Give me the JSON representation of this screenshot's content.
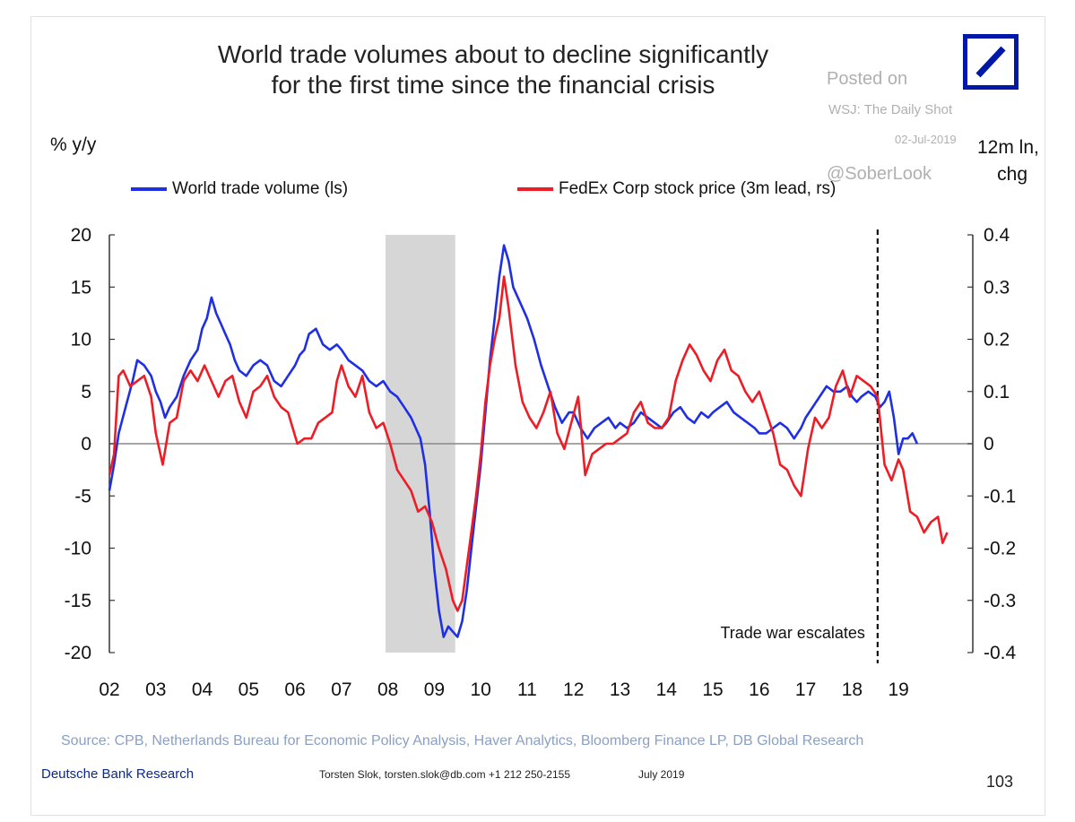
{
  "colors": {
    "series_blue": "#1f2fe6",
    "series_red": "#ee1c24",
    "recession": "#d6d6d6",
    "axis": "#333333",
    "logo": "#0018a8",
    "source_text": "#8aa0c4"
  },
  "header": {
    "title_line1": "World trade volumes about to decline significantly",
    "title_line2": "for the first time since the financial crisis"
  },
  "watermark": {
    "posted": "Posted on",
    "source": "WSJ: The Daily Shot",
    "date": "02-Jul-2019",
    "handle": "@SoberLook"
  },
  "footer": {
    "source": "Source: CPB, Netherlands Bureau for Economic Policy Analysis, Haver Analytics, Bloomberg Finance LP, DB Global Research",
    "org": "Deutsche Bank Research",
    "contact": "Torsten Slok, torsten.slok@db.com  +1 212 250-2155",
    "date": "July 2019",
    "page": "103"
  },
  "chart_data": {
    "type": "line",
    "title": "World trade volumes about to decline significantly for the first time since the financial crisis",
    "ylabel": "% y/y",
    "y2label_line1": "12m ln,",
    "y2label_line2": "chg",
    "xlim": [
      2002,
      2020.6
    ],
    "ylim": [
      -20,
      20
    ],
    "y2lim": [
      -0.4,
      0.4
    ],
    "x_ticks": [
      2002,
      2003,
      2004,
      2005,
      2006,
      2007,
      2008,
      2009,
      2010,
      2011,
      2012,
      2013,
      2014,
      2015,
      2016,
      2017,
      2018,
      2019
    ],
    "x_tick_labels": [
      "02",
      "03",
      "04",
      "05",
      "06",
      "07",
      "08",
      "09",
      "10",
      "11",
      "12",
      "13",
      "14",
      "15",
      "16",
      "17",
      "18",
      "19"
    ],
    "y_ticks": [
      20,
      15,
      10,
      5,
      0,
      -5,
      -10,
      -15,
      -20
    ],
    "y_tick_labels": [
      "20",
      "15",
      "10",
      "5",
      "0",
      "-5",
      "-10",
      "-15",
      "-20"
    ],
    "y2_ticks": [
      0.4,
      0.3,
      0.2,
      0.1,
      0,
      -0.1,
      -0.2,
      -0.3,
      -0.4
    ],
    "y2_tick_labels": [
      "0.4",
      "0.3",
      "0.2",
      "0.1",
      "0",
      "-0.1",
      "-0.2",
      "-0.3",
      "-0.4"
    ],
    "recession_band": [
      2007.95,
      2009.45
    ],
    "event_line": {
      "x": 2018.55,
      "label": "Trade war escalates"
    },
    "series": [
      {
        "name": "World trade volume (ls)",
        "axis": "left",
        "color": "#1f2fe6",
        "x": [
          2002.0,
          2002.1,
          2002.2,
          2002.35,
          2002.5,
          2002.6,
          2002.75,
          2002.9,
          2003.0,
          2003.1,
          2003.2,
          2003.3,
          2003.45,
          2003.6,
          2003.75,
          2003.9,
          2004.0,
          2004.1,
          2004.2,
          2004.3,
          2004.4,
          2004.5,
          2004.6,
          2004.7,
          2004.8,
          2004.95,
          2005.1,
          2005.25,
          2005.4,
          2005.55,
          2005.7,
          2005.85,
          2006.0,
          2006.1,
          2006.2,
          2006.3,
          2006.45,
          2006.6,
          2006.75,
          2006.9,
          2007.0,
          2007.15,
          2007.3,
          2007.45,
          2007.6,
          2007.75,
          2007.9,
          2008.05,
          2008.2,
          2008.35,
          2008.5,
          2008.6,
          2008.7,
          2008.8,
          2008.9,
          2009.0,
          2009.1,
          2009.2,
          2009.3,
          2009.4,
          2009.5,
          2009.6,
          2009.7,
          2009.8,
          2009.9,
          2010.0,
          2010.1,
          2010.2,
          2010.3,
          2010.4,
          2010.5,
          2010.6,
          2010.7,
          2010.85,
          2011.0,
          2011.15,
          2011.3,
          2011.45,
          2011.6,
          2011.75,
          2011.9,
          2012.0,
          2012.15,
          2012.3,
          2012.45,
          2012.6,
          2012.75,
          2012.9,
          2013.0,
          2013.15,
          2013.3,
          2013.45,
          2013.6,
          2013.75,
          2013.9,
          2014.0,
          2014.15,
          2014.3,
          2014.45,
          2014.6,
          2014.75,
          2014.9,
          2015.0,
          2015.15,
          2015.3,
          2015.45,
          2015.6,
          2015.75,
          2015.9,
          2016.0,
          2016.15,
          2016.3,
          2016.45,
          2016.6,
          2016.75,
          2016.9,
          2017.0,
          2017.15,
          2017.3,
          2017.45,
          2017.6,
          2017.75,
          2017.9,
          2018.0,
          2018.1,
          2018.2,
          2018.35,
          2018.5,
          2018.6,
          2018.7,
          2018.8,
          2018.9,
          2019.0,
          2019.1,
          2019.2,
          2019.3,
          2019.4
        ],
        "values": [
          -4.5,
          -2.0,
          1.0,
          3.5,
          6.0,
          8.0,
          7.5,
          6.5,
          5.0,
          4.0,
          2.5,
          3.5,
          4.5,
          6.5,
          8.0,
          9.0,
          11.0,
          12.0,
          14.0,
          12.5,
          11.5,
          10.5,
          9.5,
          8.0,
          7.0,
          6.5,
          7.5,
          8.0,
          7.5,
          6.0,
          5.5,
          6.5,
          7.5,
          8.5,
          9.0,
          10.5,
          11.0,
          9.5,
          9.0,
          9.5,
          9.0,
          8.0,
          7.5,
          7.0,
          6.0,
          5.5,
          6.0,
          5.0,
          4.5,
          3.5,
          2.5,
          1.5,
          0.5,
          -2.0,
          -6.5,
          -12.0,
          -16.0,
          -18.5,
          -17.5,
          -18.0,
          -18.5,
          -17.0,
          -14.0,
          -10.0,
          -6.0,
          -2.0,
          3.0,
          8.0,
          12.0,
          16.0,
          19.0,
          17.5,
          15.0,
          13.5,
          12.0,
          10.0,
          7.5,
          5.5,
          3.5,
          2.0,
          3.0,
          3.0,
          1.5,
          0.5,
          1.5,
          2.0,
          2.5,
          1.5,
          2.0,
          1.5,
          2.0,
          3.0,
          2.5,
          2.0,
          1.5,
          2.0,
          3.0,
          3.5,
          2.5,
          2.0,
          3.0,
          2.5,
          3.0,
          3.5,
          4.0,
          3.0,
          2.5,
          2.0,
          1.5,
          1.0,
          1.0,
          1.5,
          2.0,
          1.5,
          0.5,
          1.5,
          2.5,
          3.5,
          4.5,
          5.5,
          5.0,
          5.0,
          5.5,
          4.5,
          4.0,
          4.5,
          5.0,
          4.5,
          3.5,
          4.0,
          5.0,
          2.5,
          -1.0,
          0.5,
          0.5,
          1.0,
          0.0
        ]
      },
      {
        "name": "FedEx Corp stock price (3m lead, rs)",
        "axis": "right",
        "color": "#ee1c24",
        "x": [
          2002.0,
          2002.1,
          2002.2,
          2002.3,
          2002.45,
          2002.6,
          2002.75,
          2002.9,
          2003.0,
          2003.15,
          2003.3,
          2003.45,
          2003.6,
          2003.75,
          2003.9,
          2004.05,
          2004.2,
          2004.35,
          2004.5,
          2004.65,
          2004.8,
          2004.95,
          2005.1,
          2005.25,
          2005.4,
          2005.55,
          2005.7,
          2005.85,
          2005.95,
          2006.05,
          2006.2,
          2006.35,
          2006.5,
          2006.65,
          2006.8,
          2006.9,
          2007.0,
          2007.15,
          2007.3,
          2007.45,
          2007.6,
          2007.75,
          2007.9,
          2008.05,
          2008.2,
          2008.35,
          2008.5,
          2008.65,
          2008.8,
          2008.95,
          2009.1,
          2009.25,
          2009.4,
          2009.5,
          2009.6,
          2009.75,
          2009.9,
          2010.0,
          2010.1,
          2010.2,
          2010.3,
          2010.4,
          2010.5,
          2010.6,
          2010.75,
          2010.9,
          2011.05,
          2011.2,
          2011.35,
          2011.5,
          2011.65,
          2011.8,
          2011.95,
          2012.1,
          2012.25,
          2012.4,
          2012.55,
          2012.7,
          2012.85,
          2013.0,
          2013.15,
          2013.3,
          2013.45,
          2013.6,
          2013.75,
          2013.9,
          2014.05,
          2014.2,
          2014.35,
          2014.5,
          2014.65,
          2014.8,
          2014.95,
          2015.1,
          2015.25,
          2015.4,
          2015.55,
          2015.7,
          2015.85,
          2016.0,
          2016.15,
          2016.3,
          2016.45,
          2016.6,
          2016.75,
          2016.9,
          2017.05,
          2017.2,
          2017.35,
          2017.5,
          2017.65,
          2017.8,
          2017.95,
          2018.1,
          2018.25,
          2018.4,
          2018.55,
          2018.7,
          2018.85,
          2019.0,
          2019.1,
          2019.25,
          2019.4,
          2019.55,
          2019.7,
          2019.85,
          2019.95,
          2020.05
        ],
        "values": [
          -0.06,
          -0.02,
          0.13,
          0.14,
          0.11,
          0.12,
          0.13,
          0.09,
          0.02,
          -0.04,
          0.04,
          0.05,
          0.12,
          0.14,
          0.12,
          0.15,
          0.12,
          0.09,
          0.12,
          0.13,
          0.08,
          0.05,
          0.1,
          0.11,
          0.13,
          0.09,
          0.07,
          0.06,
          0.03,
          0.0,
          0.01,
          0.01,
          0.04,
          0.05,
          0.06,
          0.12,
          0.15,
          0.11,
          0.09,
          0.13,
          0.06,
          0.03,
          0.04,
          0.0,
          -0.05,
          -0.07,
          -0.09,
          -0.13,
          -0.12,
          -0.15,
          -0.2,
          -0.24,
          -0.3,
          -0.32,
          -0.3,
          -0.2,
          -0.1,
          -0.02,
          0.08,
          0.15,
          0.2,
          0.24,
          0.32,
          0.26,
          0.15,
          0.08,
          0.05,
          0.03,
          0.06,
          0.1,
          0.02,
          -0.01,
          0.04,
          0.09,
          -0.06,
          -0.02,
          -0.01,
          0.0,
          0.0,
          0.01,
          0.02,
          0.06,
          0.08,
          0.04,
          0.03,
          0.03,
          0.05,
          0.12,
          0.16,
          0.19,
          0.17,
          0.14,
          0.12,
          0.16,
          0.18,
          0.14,
          0.13,
          0.1,
          0.08,
          0.1,
          0.06,
          0.02,
          -0.04,
          -0.05,
          -0.08,
          -0.1,
          -0.01,
          0.05,
          0.03,
          0.05,
          0.11,
          0.14,
          0.09,
          0.13,
          0.12,
          0.11,
          0.09,
          -0.04,
          -0.07,
          -0.03,
          -0.05,
          -0.13,
          -0.14,
          -0.17,
          -0.15,
          -0.14,
          -0.19,
          -0.17
        ]
      }
    ]
  }
}
